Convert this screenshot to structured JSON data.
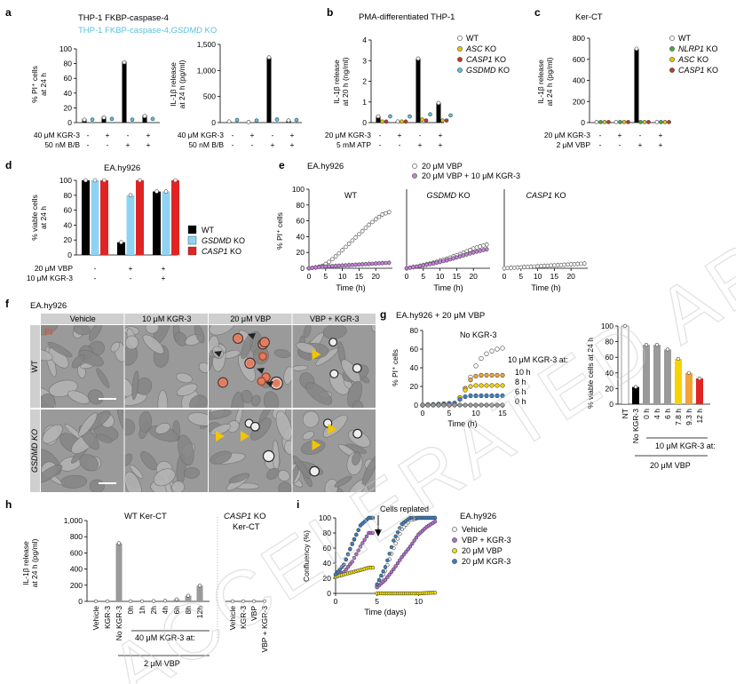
{
  "watermark": "ACCELERATED ARTICLE PREVIEW",
  "panels": {
    "a": {
      "letter": "a",
      "legend": [
        "THP-1 FKBP-caspase-4",
        "THP-1 FKBP-caspase-4,",
        "GSDMD",
        " KO"
      ],
      "conditions": [
        {
          "label": "40 μM KGR-3",
          "marks": [
            "-",
            "+",
            "-",
            "+"
          ]
        },
        {
          "label": "50 nM B/B",
          "marks": [
            "-",
            "-",
            "+",
            "+"
          ]
        }
      ],
      "colors": {
        "wt": "#000000",
        "ko": "#5bc0de"
      }
    },
    "b": {
      "letter": "b",
      "title": "PMA-differentiated THP-1",
      "legend": [
        [
          "WT",
          ""
        ],
        [
          "ASC",
          " KO"
        ],
        [
          "CASP1",
          " KO"
        ],
        [
          "GSDMD",
          " KO"
        ]
      ],
      "conditions": [
        {
          "label": "20 μM KGR-3",
          "marks": [
            "-",
            "+",
            "-",
            "+"
          ]
        },
        {
          "label": "5 mM ATP",
          "marks": [
            "-",
            "-",
            "+",
            "+"
          ]
        }
      ],
      "colors": [
        "#ffffff",
        "#e8c600",
        "#c0392b",
        "#5bc0de"
      ]
    },
    "c": {
      "letter": "c",
      "title": "Ker-CT",
      "legend": [
        [
          "WT",
          ""
        ],
        [
          "NLRP1",
          " KO"
        ],
        [
          "ASC",
          " KO"
        ],
        [
          "CASP1",
          " KO"
        ]
      ],
      "conditions": [
        {
          "label": "20 μM KGR-3",
          "marks": [
            "-",
            "+",
            "-",
            "+"
          ]
        },
        {
          "label": "2 μM VBP",
          "marks": [
            "-",
            "-",
            "+",
            "+"
          ]
        }
      ],
      "colors": [
        "#ffffff",
        "#3cb043",
        "#e8c600",
        "#c0392b"
      ]
    },
    "d": {
      "letter": "d",
      "title": "EA.hy926",
      "legend": [
        [
          "WT",
          ""
        ],
        [
          "GSDMD",
          " KO"
        ],
        [
          "CASP1",
          " KO"
        ]
      ],
      "conditions": [
        {
          "label": "20 μM VBP",
          "marks": [
            "-",
            "+",
            "+"
          ]
        },
        {
          "label": "10 μM KGR-3",
          "marks": [
            "-",
            "-",
            "+"
          ]
        }
      ],
      "colors": [
        "#000000",
        "#8fd3f4",
        "#e02424"
      ]
    },
    "e": {
      "letter": "e",
      "title": "EA.hy926",
      "legend": [
        "20 μM VBP",
        "20 μM VBP + 10 μM KGR-3"
      ],
      "subplots": [
        [
          "WT",
          ""
        ],
        [
          "GSDMD",
          " KO"
        ],
        [
          "CASP1",
          " KO"
        ]
      ],
      "xlabel": "Time (h)",
      "ylabel": "% PI⁺ cells"
    },
    "f": {
      "letter": "f",
      "title": "EA.hy926",
      "columns": [
        "Vehicle",
        "10 μM KGR-3",
        "20 μM VBP",
        "VBP + KGR-3"
      ],
      "rows": [
        "WT",
        "GSDMD KO"
      ],
      "stain": "PI"
    },
    "g": {
      "letter": "g",
      "title": "EA.hy926 + 20 μM VBP",
      "no_kgr_label": "No KGR-3",
      "addition_label": "10 μM KGR-3 at:",
      "addition_times": [
        "10 h",
        "8 h",
        "6 h",
        "0 h"
      ],
      "xlabel": "Time (h)",
      "ylabel": "% PI⁺ cells",
      "bar_ylabel": "% viable cells at 24 h",
      "bar_categories": [
        "NT",
        "No KGR-3",
        "0 h",
        "4 h",
        "6 h",
        "7.8 h",
        "9.3 h",
        "12 h"
      ],
      "bar_group1": "10 μM KGR-3 at:",
      "bar_group2": "20 μM VBP"
    },
    "h": {
      "letter": "h",
      "title1": "WT Ker-CT",
      "title2a": "CASP1",
      "title2b": " KO",
      "title2c": "Ker-CT",
      "ylabel": "IL-1β release\nat 24 h (pg/ml)",
      "categories": [
        "Vehicle",
        "KGR-3",
        "No KGR-3",
        "0h",
        "1h",
        "2h",
        "4h",
        "6h",
        "8h",
        "12h"
      ],
      "categories2": [
        "Vehicle",
        "KGR-3",
        "VBP",
        "VBP + KGR-3"
      ],
      "group1": "40 μM KGR-3 at:",
      "group2": "2 μM VBP"
    },
    "i": {
      "letter": "i",
      "title": "EA.hy926",
      "annotation": "Cells replated",
      "legend": [
        "Vehicle",
        "VBP + KGR-3",
        "20 μM VBP",
        "20 μM KGR-3"
      ],
      "xlabel": "Time (days)",
      "ylabel": "Confluency (%)"
    }
  },
  "chart_data": [
    {
      "panel": "a-left",
      "type": "bar",
      "ylabel": "% PI⁺ cells at 24 h",
      "ylim": [
        0,
        100
      ],
      "yticks": [
        "0",
        "20",
        "40",
        "60",
        "80",
        "100"
      ],
      "series": [
        {
          "name": "THP-1 FKBP-caspase-4",
          "values": [
            5,
            8,
            83,
            10
          ]
        },
        {
          "name": "THP-1 FKBP-caspase-4, GSDMD KO",
          "values": [
            4,
            5,
            4,
            5
          ]
        }
      ]
    },
    {
      "panel": "a-right",
      "type": "bar",
      "ylabel": "IL-1β release at 24 h (pg/ml)",
      "ylim": [
        0,
        1500
      ],
      "yticks": [
        "0",
        "500",
        "1,000",
        "1,500"
      ],
      "series": [
        {
          "name": "THP-1 FKBP-caspase-4",
          "values": [
            20,
            10,
            1250,
            40
          ]
        },
        {
          "name": "THP-1 FKBP-caspase-4, GSDMD KO",
          "values": [
            50,
            40,
            60,
            50
          ]
        }
      ]
    },
    {
      "panel": "b",
      "type": "bar",
      "ylabel": "IL-1β release at 20 h (ng/ml)",
      "ylim": [
        0,
        4
      ],
      "yticks": [
        "0",
        "1",
        "2",
        "3",
        "4"
      ],
      "series": [
        {
          "name": "WT",
          "values": [
            0.3,
            0.05,
            3.1,
            0.95
          ]
        },
        {
          "name": "ASC KO",
          "values": [
            0.05,
            0.05,
            0.15,
            0.1
          ]
        },
        {
          "name": "CASP1 KO",
          "values": [
            0.05,
            0.05,
            0.1,
            0.1
          ]
        },
        {
          "name": "GSDMD KO",
          "values": [
            0.3,
            0.3,
            0.4,
            0.35
          ]
        }
      ]
    },
    {
      "panel": "c",
      "type": "bar",
      "ylabel": "IL-1β release at 24 h (pg/ml)",
      "ylim": [
        0,
        800
      ],
      "yticks": [
        "0",
        "200",
        "400",
        "600",
        "800"
      ],
      "series": [
        {
          "name": "WT",
          "values": [
            5,
            5,
            700,
            5
          ]
        },
        {
          "name": "NLRP1 KO",
          "values": [
            5,
            5,
            5,
            5
          ]
        },
        {
          "name": "ASC KO",
          "values": [
            5,
            5,
            5,
            5
          ]
        },
        {
          "name": "CASP1 KO",
          "values": [
            5,
            5,
            5,
            5
          ]
        }
      ]
    },
    {
      "panel": "d",
      "type": "bar",
      "ylabel": "% viable cells at 24 h",
      "ylim": [
        0,
        100
      ],
      "yticks": [
        "0",
        "20",
        "40",
        "60",
        "80",
        "100"
      ],
      "series": [
        {
          "name": "WT",
          "values": [
            100,
            17,
            85
          ]
        },
        {
          "name": "GSDMD KO",
          "values": [
            100,
            80,
            85
          ]
        },
        {
          "name": "CASP1 KO",
          "values": [
            100,
            100,
            100
          ]
        }
      ]
    },
    {
      "panel": "e",
      "type": "line",
      "xlim": [
        0,
        25
      ],
      "ylim": [
        0,
        100
      ],
      "xticks": [
        "0",
        "5",
        "10",
        "15",
        "20"
      ],
      "yticks": [
        "0",
        "20",
        "40",
        "60",
        "80",
        "100"
      ],
      "subplots": [
        {
          "name": "WT",
          "series": [
            {
              "name": "20 μM VBP",
              "x": [
                0,
                2,
                4,
                6,
                8,
                10,
                12,
                14,
                16,
                18,
                20,
                22,
                24
              ],
              "y": [
                0,
                1,
                3,
                8,
                15,
                23,
                31,
                39,
                47,
                55,
                62,
                68,
                71
              ]
            },
            {
              "name": "20 μM VBP + 10 μM KGR-3",
              "x": [
                0,
                4,
                8,
                12,
                16,
                20,
                24
              ],
              "y": [
                0,
                2,
                3,
                4,
                5,
                6,
                7
              ]
            }
          ]
        },
        {
          "name": "GSDMD KO",
          "series": [
            {
              "name": "20 μM VBP",
              "x": [
                0,
                4,
                8,
                12,
                16,
                20,
                24
              ],
              "y": [
                0,
                3,
                7,
                12,
                18,
                25,
                30
              ]
            },
            {
              "name": "20 μM VBP + 10 μM KGR-3",
              "x": [
                0,
                4,
                8,
                12,
                16,
                20,
                24
              ],
              "y": [
                0,
                3,
                6,
                10,
                15,
                20,
                24
              ]
            }
          ]
        },
        {
          "name": "CASP1 KO",
          "series": [
            {
              "name": "20 μM VBP",
              "x": [
                0,
                4,
                8,
                12,
                16,
                20,
                24
              ],
              "y": [
                0,
                1,
                2,
                3,
                4,
                5,
                6
              ]
            }
          ]
        }
      ]
    },
    {
      "panel": "g-left",
      "type": "line",
      "xlim": [
        0,
        15
      ],
      "ylim": [
        0,
        80
      ],
      "xticks": [
        "0",
        "5",
        "10",
        "15"
      ],
      "yticks": [
        "0",
        "20",
        "40",
        "60",
        "80"
      ],
      "series": [
        {
          "name": "No KGR-3",
          "x": [
            0,
            5,
            6,
            7,
            8,
            9,
            10,
            11,
            12,
            13,
            14,
            15
          ],
          "y": [
            0,
            0,
            2,
            8,
            18,
            30,
            42,
            50,
            55,
            58,
            60,
            61
          ]
        },
        {
          "name": "10 h",
          "x": [
            0,
            6,
            7,
            8,
            9,
            10,
            11,
            15
          ],
          "y": [
            0,
            2,
            8,
            18,
            27,
            31,
            32,
            32
          ]
        },
        {
          "name": "8 h",
          "x": [
            0,
            6,
            7,
            8,
            9,
            10,
            15
          ],
          "y": [
            0,
            2,
            8,
            16,
            20,
            21,
            21
          ]
        },
        {
          "name": "6 h",
          "x": [
            0,
            6,
            7,
            8,
            9,
            15
          ],
          "y": [
            0,
            2,
            6,
            9,
            10,
            10
          ]
        },
        {
          "name": "0 h",
          "x": [
            0,
            15
          ],
          "y": [
            0,
            0
          ]
        }
      ]
    },
    {
      "panel": "g-right",
      "type": "bar",
      "ylabel": "% viable cells at 24 h",
      "ylim": [
        0,
        100
      ],
      "yticks": [
        "0",
        "20",
        "40",
        "60",
        "80",
        "100"
      ],
      "categories": [
        "NT",
        "No KGR-3",
        "0 h",
        "4 h",
        "6 h",
        "7.8 h",
        "9.3 h",
        "12 h"
      ],
      "values": [
        100,
        22,
        76,
        76,
        70,
        58,
        40,
        33
      ]
    },
    {
      "panel": "h",
      "type": "bar",
      "ylabel": "IL-1β release at 24 h (pg/ml)",
      "ylim": [
        0,
        1000
      ],
      "yticks": [
        "0",
        "200",
        "400",
        "600",
        "800",
        "1,000"
      ],
      "categories": [
        "Vehicle",
        "KGR-3",
        "No KGR-3",
        "0h",
        "1h",
        "2h",
        "4h",
        "6h",
        "8h",
        "12h",
        "Vehicle",
        "KGR-3",
        "VBP",
        "VBP + KGR-3"
      ],
      "values": [
        2,
        2,
        720,
        2,
        2,
        4,
        8,
        25,
        70,
        195,
        2,
        2,
        2,
        2
      ]
    },
    {
      "panel": "i",
      "type": "line",
      "xlim": [
        0,
        12
      ],
      "ylim": [
        0,
        100
      ],
      "xticks": [
        "0",
        "5",
        "10"
      ],
      "yticks": [
        "0",
        "20",
        "40",
        "60",
        "80",
        "100"
      ],
      "series": [
        {
          "name": "Vehicle",
          "x": [
            0,
            1,
            2,
            3,
            4,
            5,
            6,
            7,
            8,
            9,
            10,
            11,
            12
          ],
          "y": [
            25,
            38,
            65,
            90,
            100,
            10,
            30,
            60,
            85,
            97,
            100,
            100,
            100
          ]
        },
        {
          "name": "VBP + KGR-3",
          "x": [
            0,
            1,
            2,
            3,
            4,
            5,
            6,
            7,
            8,
            9,
            10,
            11,
            12
          ],
          "y": [
            24,
            28,
            42,
            62,
            80,
            8,
            18,
            32,
            48,
            62,
            78,
            88,
            95
          ]
        },
        {
          "name": "20 μM VBP",
          "x": [
            0,
            1,
            2,
            3,
            4,
            5,
            6,
            8,
            10,
            12
          ],
          "y": [
            22,
            25,
            28,
            31,
            34,
            0,
            0,
            0,
            0,
            1
          ]
        },
        {
          "name": "20 μM KGR-3",
          "x": [
            0,
            1,
            2,
            3,
            4,
            5,
            6,
            7,
            8,
            9,
            10,
            11,
            12
          ],
          "y": [
            25,
            38,
            66,
            90,
            100,
            12,
            35,
            70,
            92,
            100,
            100,
            100,
            100
          ]
        }
      ]
    }
  ]
}
